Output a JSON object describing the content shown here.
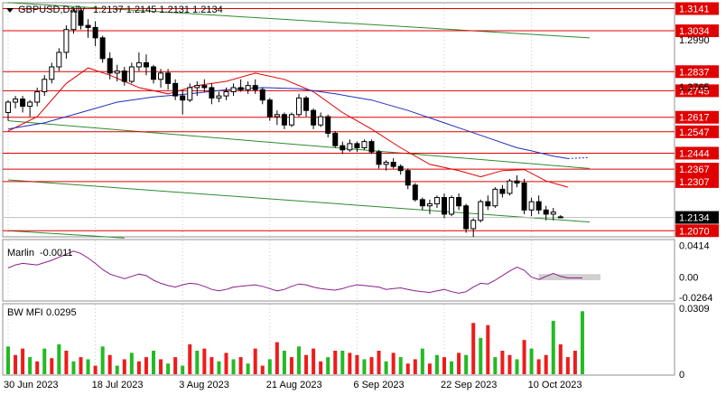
{
  "header": {
    "symbol_line": "GBPUSD,Daily",
    "ohlc": "1.2137 1.2145 1.2131 1.2134"
  },
  "colors": {
    "bull": "#ffffff",
    "bear": "#000000",
    "level_line": "#e00000",
    "level_label_bg": "#e00000",
    "ma_fast": "#e00000",
    "ma_slow": "#1f2fbf",
    "channel": "#2e8b2e",
    "marlin": "#8b1f8b",
    "mfi_up": "#22bb22",
    "mfi_down": "#ee1c1c",
    "grid": "#c8c8c8",
    "current_price_bg": "#000000"
  },
  "chart_data": [
    {
      "name": "price",
      "type": "candlestick",
      "ylim": [
        1.2045,
        1.3165
      ],
      "x_ticks": [
        {
          "label": "30 Jun 2023",
          "i": 0
        },
        {
          "label": "18 Jul 2023",
          "i": 12
        },
        {
          "label": "3 Aug 2023",
          "i": 24
        },
        {
          "label": "21 Aug 2023",
          "i": 36
        },
        {
          "label": "6 Sep 2023",
          "i": 48
        },
        {
          "label": "22 Sep 2023",
          "i": 60
        },
        {
          "label": "10 Oct 2023",
          "i": 72
        }
      ],
      "y_ticks": [
        "1.2990",
        "1.2765"
      ],
      "levels": [
        "1.3141",
        "1.3034",
        "1.2837",
        "1.2745",
        "1.2617",
        "1.2547",
        "1.2444",
        "1.2367",
        "1.2307",
        "1.2070"
      ],
      "current_price": "1.2134",
      "candles": [
        [
          1.264,
          1.27,
          1.26,
          1.269
        ],
        [
          1.269,
          1.272,
          1.266,
          1.2705
        ],
        [
          1.2705,
          1.272,
          1.264,
          1.267
        ],
        [
          1.267,
          1.27,
          1.262,
          1.269
        ],
        [
          1.269,
          1.276,
          1.267,
          1.274
        ],
        [
          1.274,
          1.282,
          1.272,
          1.28
        ],
        [
          1.28,
          1.288,
          1.278,
          1.286
        ],
        [
          1.286,
          1.295,
          1.284,
          1.293
        ],
        [
          1.293,
          1.306,
          1.29,
          1.304
        ],
        [
          1.304,
          1.3145,
          1.302,
          1.313
        ],
        [
          1.313,
          1.3142,
          1.304,
          1.306
        ],
        [
          1.306,
          1.309,
          1.3,
          1.305
        ],
        [
          1.305,
          1.308,
          1.296,
          1.3
        ],
        [
          1.3,
          1.301,
          1.288,
          1.29
        ],
        [
          1.29,
          1.293,
          1.28,
          1.283
        ],
        [
          1.283,
          1.287,
          1.279,
          1.284
        ],
        [
          1.284,
          1.286,
          1.277,
          1.279
        ],
        [
          1.279,
          1.288,
          1.278,
          1.286
        ],
        [
          1.286,
          1.293,
          1.284,
          1.288
        ],
        [
          1.288,
          1.292,
          1.282,
          1.286
        ],
        [
          1.286,
          1.287,
          1.278,
          1.28
        ],
        [
          1.28,
          1.285,
          1.276,
          1.283
        ],
        [
          1.283,
          1.285,
          1.275,
          1.278
        ],
        [
          1.278,
          1.28,
          1.27,
          1.272
        ],
        [
          1.272,
          1.275,
          1.263,
          1.27
        ],
        [
          1.27,
          1.278,
          1.269,
          1.276
        ],
        [
          1.276,
          1.279,
          1.272,
          1.277
        ],
        [
          1.277,
          1.28,
          1.274,
          1.276
        ],
        [
          1.276,
          1.278,
          1.268,
          1.271
        ],
        [
          1.271,
          1.274,
          1.269,
          1.272
        ],
        [
          1.272,
          1.276,
          1.27,
          1.274
        ],
        [
          1.274,
          1.278,
          1.272,
          1.276
        ],
        [
          1.276,
          1.28,
          1.274,
          1.275
        ],
        [
          1.275,
          1.279,
          1.273,
          1.277
        ],
        [
          1.277,
          1.28,
          1.273,
          1.275
        ],
        [
          1.275,
          1.276,
          1.268,
          1.27
        ],
        [
          1.27,
          1.271,
          1.26,
          1.262
        ],
        [
          1.262,
          1.265,
          1.258,
          1.263
        ],
        [
          1.263,
          1.264,
          1.256,
          1.258
        ],
        [
          1.258,
          1.264,
          1.257,
          1.263
        ],
        [
          1.263,
          1.273,
          1.262,
          1.271
        ],
        [
          1.271,
          1.272,
          1.262,
          1.265
        ],
        [
          1.265,
          1.266,
          1.256,
          1.258
        ],
        [
          1.258,
          1.264,
          1.257,
          1.262
        ],
        [
          1.262,
          1.263,
          1.252,
          1.254
        ],
        [
          1.254,
          1.255,
          1.247,
          1.248
        ],
        [
          1.248,
          1.25,
          1.244,
          1.246
        ],
        [
          1.246,
          1.251,
          1.245,
          1.249
        ],
        [
          1.249,
          1.25,
          1.245,
          1.247
        ],
        [
          1.247,
          1.251,
          1.246,
          1.25
        ],
        [
          1.25,
          1.251,
          1.244,
          1.245
        ],
        [
          1.245,
          1.246,
          1.237,
          1.239
        ],
        [
          1.239,
          1.241,
          1.236,
          1.24
        ],
        [
          1.24,
          1.242,
          1.237,
          1.238
        ],
        [
          1.238,
          1.239,
          1.234,
          1.236
        ],
        [
          1.236,
          1.237,
          1.227,
          1.229
        ],
        [
          1.229,
          1.23,
          1.221,
          1.222
        ],
        [
          1.222,
          1.223,
          1.217,
          1.219
        ],
        [
          1.219,
          1.222,
          1.215,
          1.22
        ],
        [
          1.22,
          1.224,
          1.218,
          1.223
        ],
        [
          1.223,
          1.225,
          1.213,
          1.215
        ],
        [
          1.215,
          1.224,
          1.214,
          1.223
        ],
        [
          1.223,
          1.225,
          1.217,
          1.219
        ],
        [
          1.219,
          1.22,
          1.206,
          1.208
        ],
        [
          1.208,
          1.213,
          1.204,
          1.212
        ],
        [
          1.212,
          1.222,
          1.211,
          1.221
        ],
        [
          1.221,
          1.224,
          1.217,
          1.219
        ],
        [
          1.219,
          1.228,
          1.218,
          1.227
        ],
        [
          1.227,
          1.229,
          1.223,
          1.225
        ],
        [
          1.225,
          1.232,
          1.224,
          1.231
        ],
        [
          1.231,
          1.2337,
          1.228,
          1.23
        ],
        [
          1.23,
          1.232,
          1.215,
          1.217
        ],
        [
          1.217,
          1.223,
          1.214,
          1.221
        ],
        [
          1.221,
          1.224,
          1.215,
          1.217
        ],
        [
          1.217,
          1.219,
          1.212,
          1.215
        ],
        [
          1.215,
          1.218,
          1.212,
          1.216
        ],
        [
          1.2137,
          1.2145,
          1.2131,
          1.2134
        ]
      ],
      "series": [
        {
          "id": "ma_fast",
          "x": [
            0,
            4,
            8,
            11,
            14,
            18,
            22,
            26,
            30,
            34,
            38,
            42,
            46,
            50,
            54,
            58,
            62,
            65,
            68,
            71,
            74,
            77
          ],
          "y": [
            1.255,
            1.262,
            1.278,
            1.2855,
            1.282,
            1.276,
            1.273,
            1.277,
            1.279,
            1.283,
            1.28,
            1.274,
            1.264,
            1.256,
            1.247,
            1.239,
            1.236,
            1.233,
            1.236,
            1.2365,
            1.231,
            1.228
          ]
        },
        {
          "id": "ma_slow",
          "x": [
            0,
            5,
            10,
            15,
            20,
            25,
            30,
            35,
            40,
            45,
            50,
            55,
            60,
            65,
            70,
            72,
            75,
            77
          ],
          "y": [
            1.256,
            1.259,
            1.264,
            1.269,
            1.2715,
            1.273,
            1.275,
            1.276,
            1.2755,
            1.273,
            1.27,
            1.265,
            1.259,
            1.253,
            1.247,
            1.2455,
            1.243,
            1.2418
          ]
        }
      ],
      "channel_lines": [
        {
          "x": [
            0,
            80
          ],
          "y": [
            1.317,
            1.3
          ]
        },
        {
          "x": [
            0,
            80
          ],
          "y": [
            1.26,
            1.237
          ]
        },
        {
          "x": [
            0,
            80
          ],
          "y": [
            1.2315,
            1.2112
          ]
        },
        {
          "x": [
            0,
            16
          ],
          "y": [
            1.207,
            1.2035
          ]
        }
      ]
    },
    {
      "name": "marlin",
      "type": "line",
      "title": "Marlin",
      "value_label": "-0.0011",
      "ylim": [
        -0.03,
        0.048
      ],
      "y_ticks": [
        "0.0414",
        "0.00",
        "-0.0264"
      ],
      "values": [
        0.012,
        0.016,
        0.018,
        0.017,
        0.016,
        0.019,
        0.022,
        0.026,
        0.03,
        0.034,
        0.031,
        0.025,
        0.018,
        0.01,
        0.004,
        0.001,
        -0.002,
        0.001,
        0.004,
        0.002,
        -0.004,
        -0.008,
        -0.011,
        -0.013,
        -0.01,
        -0.008,
        -0.009,
        -0.012,
        -0.016,
        -0.018,
        -0.016,
        -0.013,
        -0.012,
        -0.011,
        -0.01,
        -0.012,
        -0.015,
        -0.018,
        -0.016,
        -0.012,
        -0.009,
        -0.01,
        -0.013,
        -0.015,
        -0.016,
        -0.017,
        -0.015,
        -0.012,
        -0.01,
        -0.011,
        -0.012,
        -0.013,
        -0.016,
        -0.015,
        -0.014,
        -0.016,
        -0.018,
        -0.019,
        -0.02,
        -0.018,
        -0.016,
        -0.019,
        -0.021,
        -0.019,
        -0.013,
        -0.008,
        -0.009,
        -0.004,
        0.002,
        0.008,
        0.013,
        0.009,
        0.0,
        -0.003,
        0.001,
        0.005,
        0.001,
        -0.001,
        -0.001,
        -0.0011
      ],
      "band": {
        "x": [
          73,
          85
        ],
        "y": [
          -0.004,
          0.004
        ]
      }
    },
    {
      "name": "bw_mfi",
      "type": "bar",
      "title": "BW MFI",
      "value_label": "0.0295",
      "ylim": [
        0,
        0.0309
      ],
      "y_ticks": [
        "0.0309",
        "0"
      ],
      "values": [
        0.013,
        0.009,
        0.012,
        0.008,
        0.006,
        0.012,
        0.0075,
        0.014,
        0.011,
        0.006,
        0.008,
        0.007,
        0.004,
        0.013,
        0.009,
        0.004,
        0.007,
        0.01,
        0.006,
        0.008,
        0.011,
        0.007,
        0.005,
        0.008,
        0.004,
        0.014,
        0.011,
        0.012,
        0.008,
        0.006,
        0.01,
        0.007,
        0.008,
        0.005,
        0.012,
        0.004,
        0.007,
        0.015,
        0.011,
        0.008,
        0.013,
        0.009,
        0.012,
        0.006,
        0.008,
        0.011,
        0.011,
        0.01,
        0.009,
        0.007,
        0.008,
        0.011,
        0.006,
        0.01,
        0.008,
        0.005,
        0.007,
        0.012,
        0.005,
        0.009,
        0.008,
        0.006,
        0.01,
        0.009,
        0.024,
        0.017,
        0.023,
        0.008,
        0.011,
        0.009,
        0.007,
        0.016,
        0.012,
        0.007,
        0.009,
        0.025,
        0.014,
        0.008,
        0.011,
        0.0295
      ],
      "colors_seq": "GRRGRGRGRGRGRGRGRGRRGRGRGRGRRGRGRGRRGRGRGRRRGRGRRGRRGRGRRGRGRGRGRGRGRRGRGRRGRRRG"
    }
  ]
}
